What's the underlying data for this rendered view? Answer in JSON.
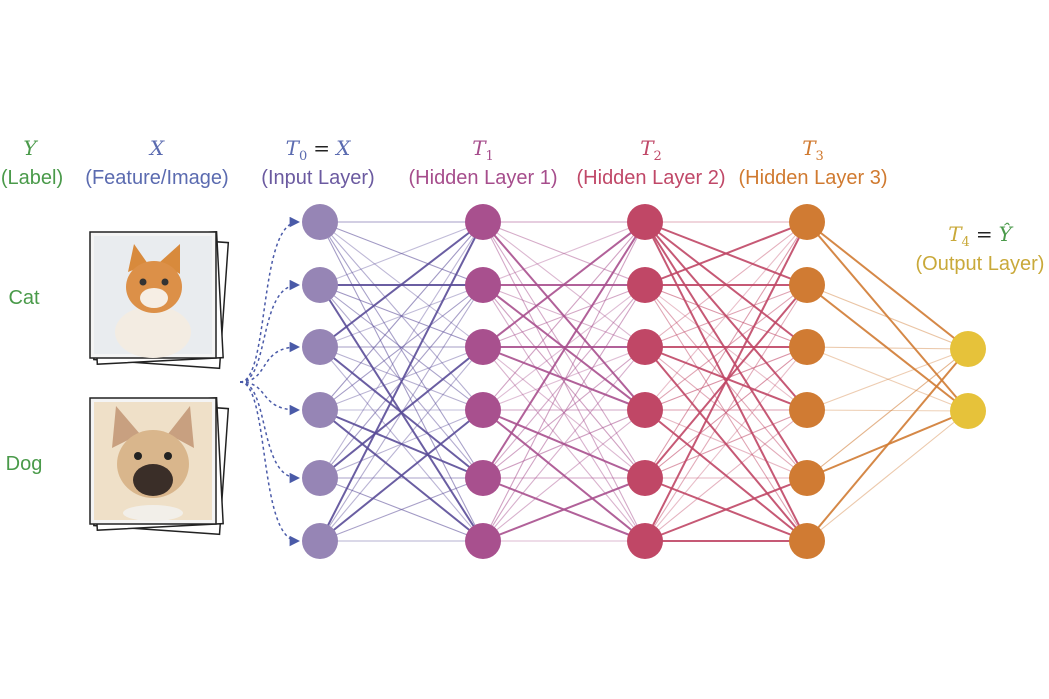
{
  "columns": {
    "label": {
      "symbol": "Y",
      "name": "(Label)",
      "color": "#4a9a4a"
    },
    "feature": {
      "symbol": "X",
      "name": "(Feature/Image)",
      "color": "#5b6bb0"
    },
    "input": {
      "symbol": "T",
      "sub": "0",
      "eq_rhs": "X",
      "name": "(Input Layer)",
      "color": "#6b5aa0",
      "node_color": "#9685b5",
      "nodes": 6
    },
    "hidden1": {
      "symbol": "T",
      "sub": "1",
      "name": "(Hidden Layer 1)",
      "color": "#a64d8c",
      "node_color": "#a8508e",
      "nodes": 6
    },
    "hidden2": {
      "symbol": "T",
      "sub": "2",
      "name": "(Hidden Layer 2)",
      "color": "#c04868",
      "node_color": "#c04766",
      "nodes": 6
    },
    "hidden3": {
      "symbol": "T",
      "sub": "3",
      "name": "(Hidden Layer 3)",
      "color": "#d07a30",
      "node_color": "#d07b33",
      "nodes": 6
    },
    "output": {
      "symbol": "T",
      "sub": "4",
      "eq_rhs": "Ŷ",
      "name": "(Output Layer)",
      "color": "#c9a93a",
      "node_color": "#e6c23a",
      "nodes": 2
    }
  },
  "samples": [
    {
      "label": "Cat",
      "image": "cat-photo"
    },
    {
      "label": "Dog",
      "image": "dog-photo"
    }
  ],
  "edge_colors": [
    "#5a4c98",
    "#a8508e",
    "#c04766",
    "#d07b33"
  ]
}
